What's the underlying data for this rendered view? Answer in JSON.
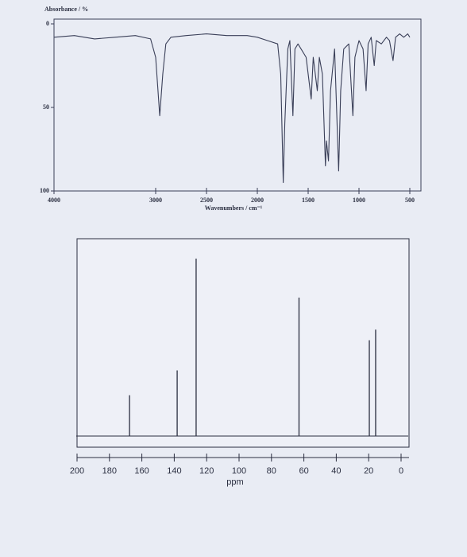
{
  "chart_data": [
    {
      "type": "line",
      "y_label": "Absorbance / %",
      "x_label": "Wavenumbers / cm⁻¹",
      "color": "#3a3f58",
      "xlim": [
        4000,
        500
      ],
      "xticks": [
        4000,
        3000,
        2500,
        2000,
        1500,
        1000,
        500
      ],
      "ylim": [
        100,
        0
      ],
      "yticks": [
        0,
        50,
        100
      ],
      "x": [
        4000,
        3800,
        3600,
        3400,
        3200,
        3050,
        3000,
        2960,
        2930,
        2900,
        2850,
        2700,
        2500,
        2300,
        2100,
        2000,
        1900,
        1800,
        1770,
        1745,
        1730,
        1700,
        1680,
        1650,
        1630,
        1600,
        1520,
        1470,
        1450,
        1410,
        1390,
        1360,
        1330,
        1320,
        1300,
        1280,
        1240,
        1200,
        1180,
        1150,
        1100,
        1060,
        1040,
        1000,
        960,
        930,
        910,
        880,
        850,
        830,
        780,
        730,
        700,
        665,
        640,
        600,
        560,
        520,
        500
      ],
      "values": [
        8,
        7,
        9,
        8,
        7,
        9,
        20,
        55,
        30,
        12,
        8,
        7,
        6,
        7,
        7,
        8,
        10,
        12,
        30,
        95,
        60,
        15,
        10,
        55,
        15,
        12,
        20,
        45,
        20,
        40,
        20,
        30,
        85,
        70,
        82,
        40,
        15,
        88,
        40,
        15,
        12,
        55,
        20,
        10,
        15,
        40,
        12,
        8,
        25,
        10,
        12,
        8,
        10,
        22,
        8,
        6,
        8,
        6,
        8
      ]
    },
    {
      "type": "stick",
      "x_label": "ppm",
      "color": "#2a2e40",
      "xlim": [
        200,
        0
      ],
      "xticks": [
        200,
        180,
        160,
        140,
        120,
        100,
        80,
        60,
        40,
        20,
        0
      ],
      "ylim": [
        0,
        100
      ],
      "x": [
        167.6,
        138.2,
        126.5,
        63.0,
        19.6,
        15.7
      ],
      "values": [
        23,
        37,
        100,
        78,
        54,
        60
      ]
    }
  ]
}
